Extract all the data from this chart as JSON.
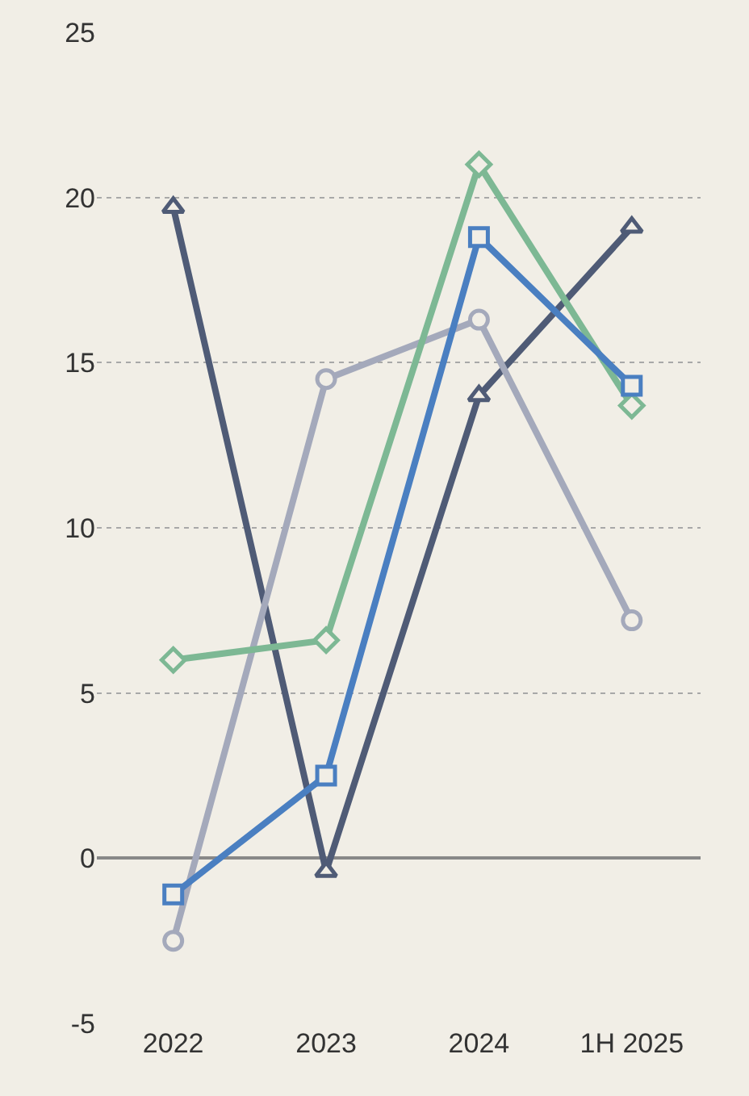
{
  "chart_data": {
    "type": "line",
    "categories": [
      "2022",
      "2023",
      "2024",
      "1H 2025"
    ],
    "series": [
      {
        "color": "#4f5b76",
        "marker": "triangle",
        "values": [
          19.7,
          -0.4,
          14.0,
          19.1
        ]
      },
      {
        "color": "#a4a9bb",
        "marker": "circle",
        "values": [
          -2.5,
          14.5,
          16.3,
          7.2
        ]
      },
      {
        "color": "#7db894",
        "marker": "diamond",
        "values": [
          6.0,
          6.6,
          21.0,
          13.7
        ]
      },
      {
        "color": "#4a7fc1",
        "marker": "square",
        "values": [
          -1.1,
          2.5,
          18.8,
          14.3
        ]
      }
    ],
    "ylim": [
      -5,
      25
    ],
    "yticks": [
      -5,
      0,
      5,
      10,
      15,
      20,
      25
    ],
    "grid": "y",
    "line_style": "solid"
  }
}
